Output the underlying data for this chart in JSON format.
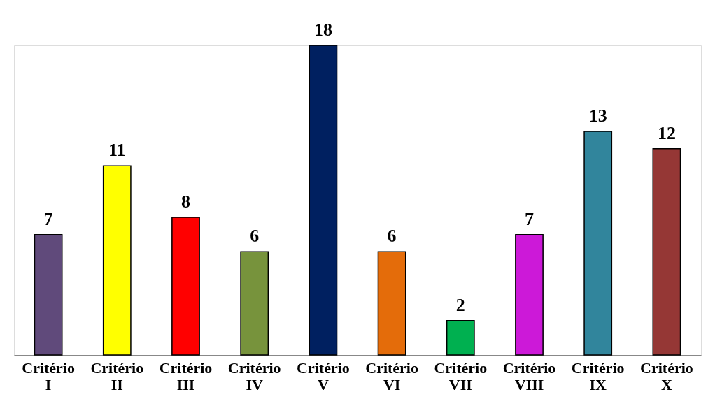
{
  "chart_data": {
    "type": "bar",
    "data_labels": true,
    "categories": [
      "Critério I",
      "Critério II",
      "Critério III",
      "Critério IV",
      "Critério V",
      "Critério VI",
      "Critério VII",
      "Critério VIII",
      "Critério IX",
      "Critério X"
    ],
    "values": [
      7,
      11,
      8,
      6,
      18,
      6,
      2,
      7,
      13,
      12
    ],
    "colors": [
      "#604a7b",
      "#ffff00",
      "#ff0000",
      "#77933c",
      "#002060",
      "#e46c0a",
      "#00b050",
      "#cc19d8",
      "#31859c",
      "#953735"
    ]
  }
}
